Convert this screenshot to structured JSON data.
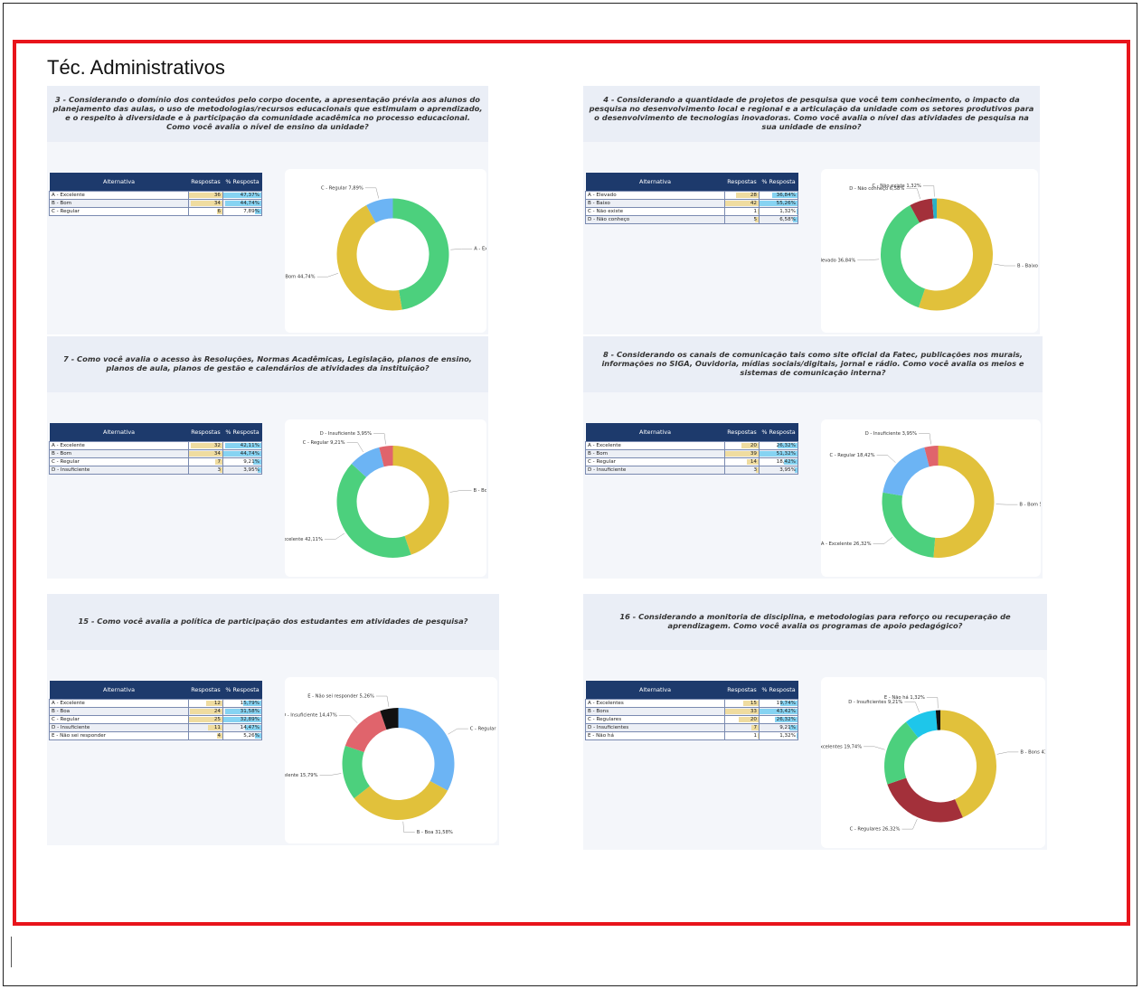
{
  "title": "Téc. Administrativos",
  "panels": [
    {
      "question": "3 - Considerando o domínio dos conteúdos pelo corpo docente, a apresentação prévia aos alunos do planejamento das aulas, o uso de metodologias/recursos educacionais que estimulam o aprendizado, e o respeito à diversidade e à participação da comunidade acadêmica no processo educacional. Como você avalia o nível de ensino da unidade?",
      "headers": [
        "Alternativa",
        "Respostas",
        "% Resposta"
      ],
      "rows": [
        {
          "label": "A - Excelente",
          "count": 36,
          "percent": 47.37,
          "percent_label": "47,37%"
        },
        {
          "label": "B - Bom",
          "count": 34,
          "percent": 44.74,
          "percent_label": "44,74%"
        },
        {
          "label": "C - Regular",
          "count": 6,
          "percent": 7.89,
          "percent_label": "7,89%"
        }
      ],
      "donut": {
        "type": "donut",
        "categories": [
          "A - Excelente",
          "B - Bom",
          "C - Regular"
        ],
        "values": [
          47.37,
          44.74,
          7.89
        ],
        "value_labels": [
          "47,37%",
          "44,74%",
          "7,89%"
        ],
        "colors": [
          "#4cd07d",
          "#e1c13b",
          "#6cb4f4"
        ]
      }
    },
    {
      "question": "4 - Considerando a quantidade de projetos de pesquisa que você tem conhecimento, o impacto da pesquisa no desenvolvimento local e regional e a articulação da unidade com os setores produtivos para o desenvolvimento de tecnologias inovadoras. Como você avalia o nível das atividades de pesquisa na sua unidade de ensino?",
      "headers": [
        "Alternativa",
        "Respostas",
        "% Resposta"
      ],
      "rows": [
        {
          "label": "A - Elevado",
          "count": 28,
          "percent": 36.84,
          "percent_label": "36,84%"
        },
        {
          "label": "B - Baixo",
          "count": 42,
          "percent": 55.26,
          "percent_label": "55,26%"
        },
        {
          "label": "C - Não existe",
          "count": 1,
          "percent": 1.32,
          "percent_label": "1,32%"
        },
        {
          "label": "D - Não conheço",
          "count": 5,
          "percent": 6.58,
          "percent_label": "6,58%"
        }
      ],
      "donut": {
        "type": "donut",
        "categories": [
          "B - Baixo",
          "A - Elevado",
          "D - Não conheço",
          "C - Não existe"
        ],
        "values": [
          55.26,
          36.84,
          6.58,
          1.32
        ],
        "value_labels": [
          "55,26%",
          "36,84%",
          "6,58%",
          "1,32%"
        ],
        "colors": [
          "#e1c13b",
          "#4cd07d",
          "#a3303a",
          "#2ab0c8"
        ]
      }
    },
    {
      "question": "7 - Como você avalia o acesso às Resoluções, Normas Acadêmicas, Legislação, planos de ensino, planos de aula, planos de gestão e calendários de atividades da instituição?",
      "headers": [
        "Alternativa",
        "Respostas",
        "% Resposta"
      ],
      "rows": [
        {
          "label": "A - Excelente",
          "count": 32,
          "percent": 42.11,
          "percent_label": "42,11%"
        },
        {
          "label": "B - Bom",
          "count": 34,
          "percent": 44.74,
          "percent_label": "44,74%"
        },
        {
          "label": "C - Regular",
          "count": 7,
          "percent": 9.21,
          "percent_label": "9,21%"
        },
        {
          "label": "D - Insuficiente",
          "count": 3,
          "percent": 3.95,
          "percent_label": "3,95%"
        }
      ],
      "donut": {
        "type": "donut",
        "categories": [
          "B - Bom",
          "A - Excelente",
          "C - Regular",
          "D - Insuficiente"
        ],
        "values": [
          44.74,
          42.11,
          9.21,
          3.95
        ],
        "value_labels": [
          "44,74%",
          "42,11%",
          "9,21%",
          "3,95%"
        ],
        "colors": [
          "#e1c13b",
          "#4cd07d",
          "#6cb4f4",
          "#e0646c"
        ]
      }
    },
    {
      "question": "8 - Considerando os canais de comunicação tais como site oficial da Fatec, publicações nos murais, informações no SIGA, Ouvidoria, mídias sociais/digitais, jornal e rádio. Como você avalia os meios e sistemas de comunicação interna?",
      "headers": [
        "Alternativa",
        "Respostas",
        "% Resposta"
      ],
      "rows": [
        {
          "label": "A - Excelente",
          "count": 20,
          "percent": 26.32,
          "percent_label": "26,32%"
        },
        {
          "label": "B - Bom",
          "count": 39,
          "percent": 51.32,
          "percent_label": "51,32%"
        },
        {
          "label": "C - Regular",
          "count": 14,
          "percent": 18.42,
          "percent_label": "18,42%"
        },
        {
          "label": "D - Insuficiente",
          "count": 3,
          "percent": 3.95,
          "percent_label": "3,95%"
        }
      ],
      "donut": {
        "type": "donut",
        "categories": [
          "B - Bom",
          "A - Excelente",
          "C - Regular",
          "D - Insuficiente"
        ],
        "values": [
          51.32,
          26.32,
          18.42,
          3.95
        ],
        "value_labels": [
          "51,32%",
          "26,32%",
          "18,42%",
          "3,95%"
        ],
        "colors": [
          "#e1c13b",
          "#4cd07d",
          "#6cb4f4",
          "#e0646c"
        ]
      }
    },
    {
      "question": "15 - Como você avalia a política de participação dos estudantes em atividades de pesquisa?",
      "headers": [
        "Alternativa",
        "Respostas",
        "% Resposta"
      ],
      "rows": [
        {
          "label": "A - Excelente",
          "count": 12,
          "percent": 15.79,
          "percent_label": "15,79%"
        },
        {
          "label": "B - Boa",
          "count": 24,
          "percent": 31.58,
          "percent_label": "31,58%"
        },
        {
          "label": "C - Regular",
          "count": 25,
          "percent": 32.89,
          "percent_label": "32,89%"
        },
        {
          "label": "D - Insuficiente",
          "count": 11,
          "percent": 14.47,
          "percent_label": "14,47%"
        },
        {
          "label": "E - Não sei responder",
          "count": 4,
          "percent": 5.26,
          "percent_label": "5,26%"
        }
      ],
      "donut": {
        "type": "donut",
        "categories": [
          "C - Regular",
          "B - Boa",
          "A - Excelente",
          "D - Insuficiente",
          "E - Não sei responder"
        ],
        "values": [
          32.89,
          31.58,
          15.79,
          14.47,
          5.26
        ],
        "value_labels": [
          "32,89%",
          "31,58%",
          "15,79%",
          "14,47%",
          "5,26%"
        ],
        "colors": [
          "#6cb4f4",
          "#e1c13b",
          "#4cd07d",
          "#e0646c",
          "#111111"
        ]
      }
    },
    {
      "question": "16 - Considerando a monitoria de disciplina, e metodologias para reforço ou recuperação de aprendizagem. Como você avalia os programas de apoio pedagógico?",
      "headers": [
        "Alternativa",
        "Respostas",
        "% Resposta"
      ],
      "rows": [
        {
          "label": "A - Excelentes",
          "count": 15,
          "percent": 19.74,
          "percent_label": "19,74%"
        },
        {
          "label": "B - Bons",
          "count": 33,
          "percent": 43.42,
          "percent_label": "43,42%"
        },
        {
          "label": "C - Regulares",
          "count": 20,
          "percent": 26.32,
          "percent_label": "26,32%"
        },
        {
          "label": "D - Insuficientes",
          "count": 7,
          "percent": 9.21,
          "percent_label": "9,21%"
        },
        {
          "label": "E - Não há",
          "count": 1,
          "percent": 1.32,
          "percent_label": "1,32%"
        }
      ],
      "donut": {
        "type": "donut",
        "categories": [
          "B - Bons",
          "C - Regulares",
          "A - Excelentes",
          "D - Insuficientes",
          "E - Não há"
        ],
        "values": [
          43.42,
          26.32,
          19.74,
          9.21,
          1.32
        ],
        "value_labels": [
          "43,42%",
          "26,32%",
          "19,74%",
          "9,21%",
          "1,32%"
        ],
        "colors": [
          "#e1c13b",
          "#a3303a",
          "#4cd07d",
          "#1ec6ea",
          "#111111"
        ]
      }
    }
  ]
}
